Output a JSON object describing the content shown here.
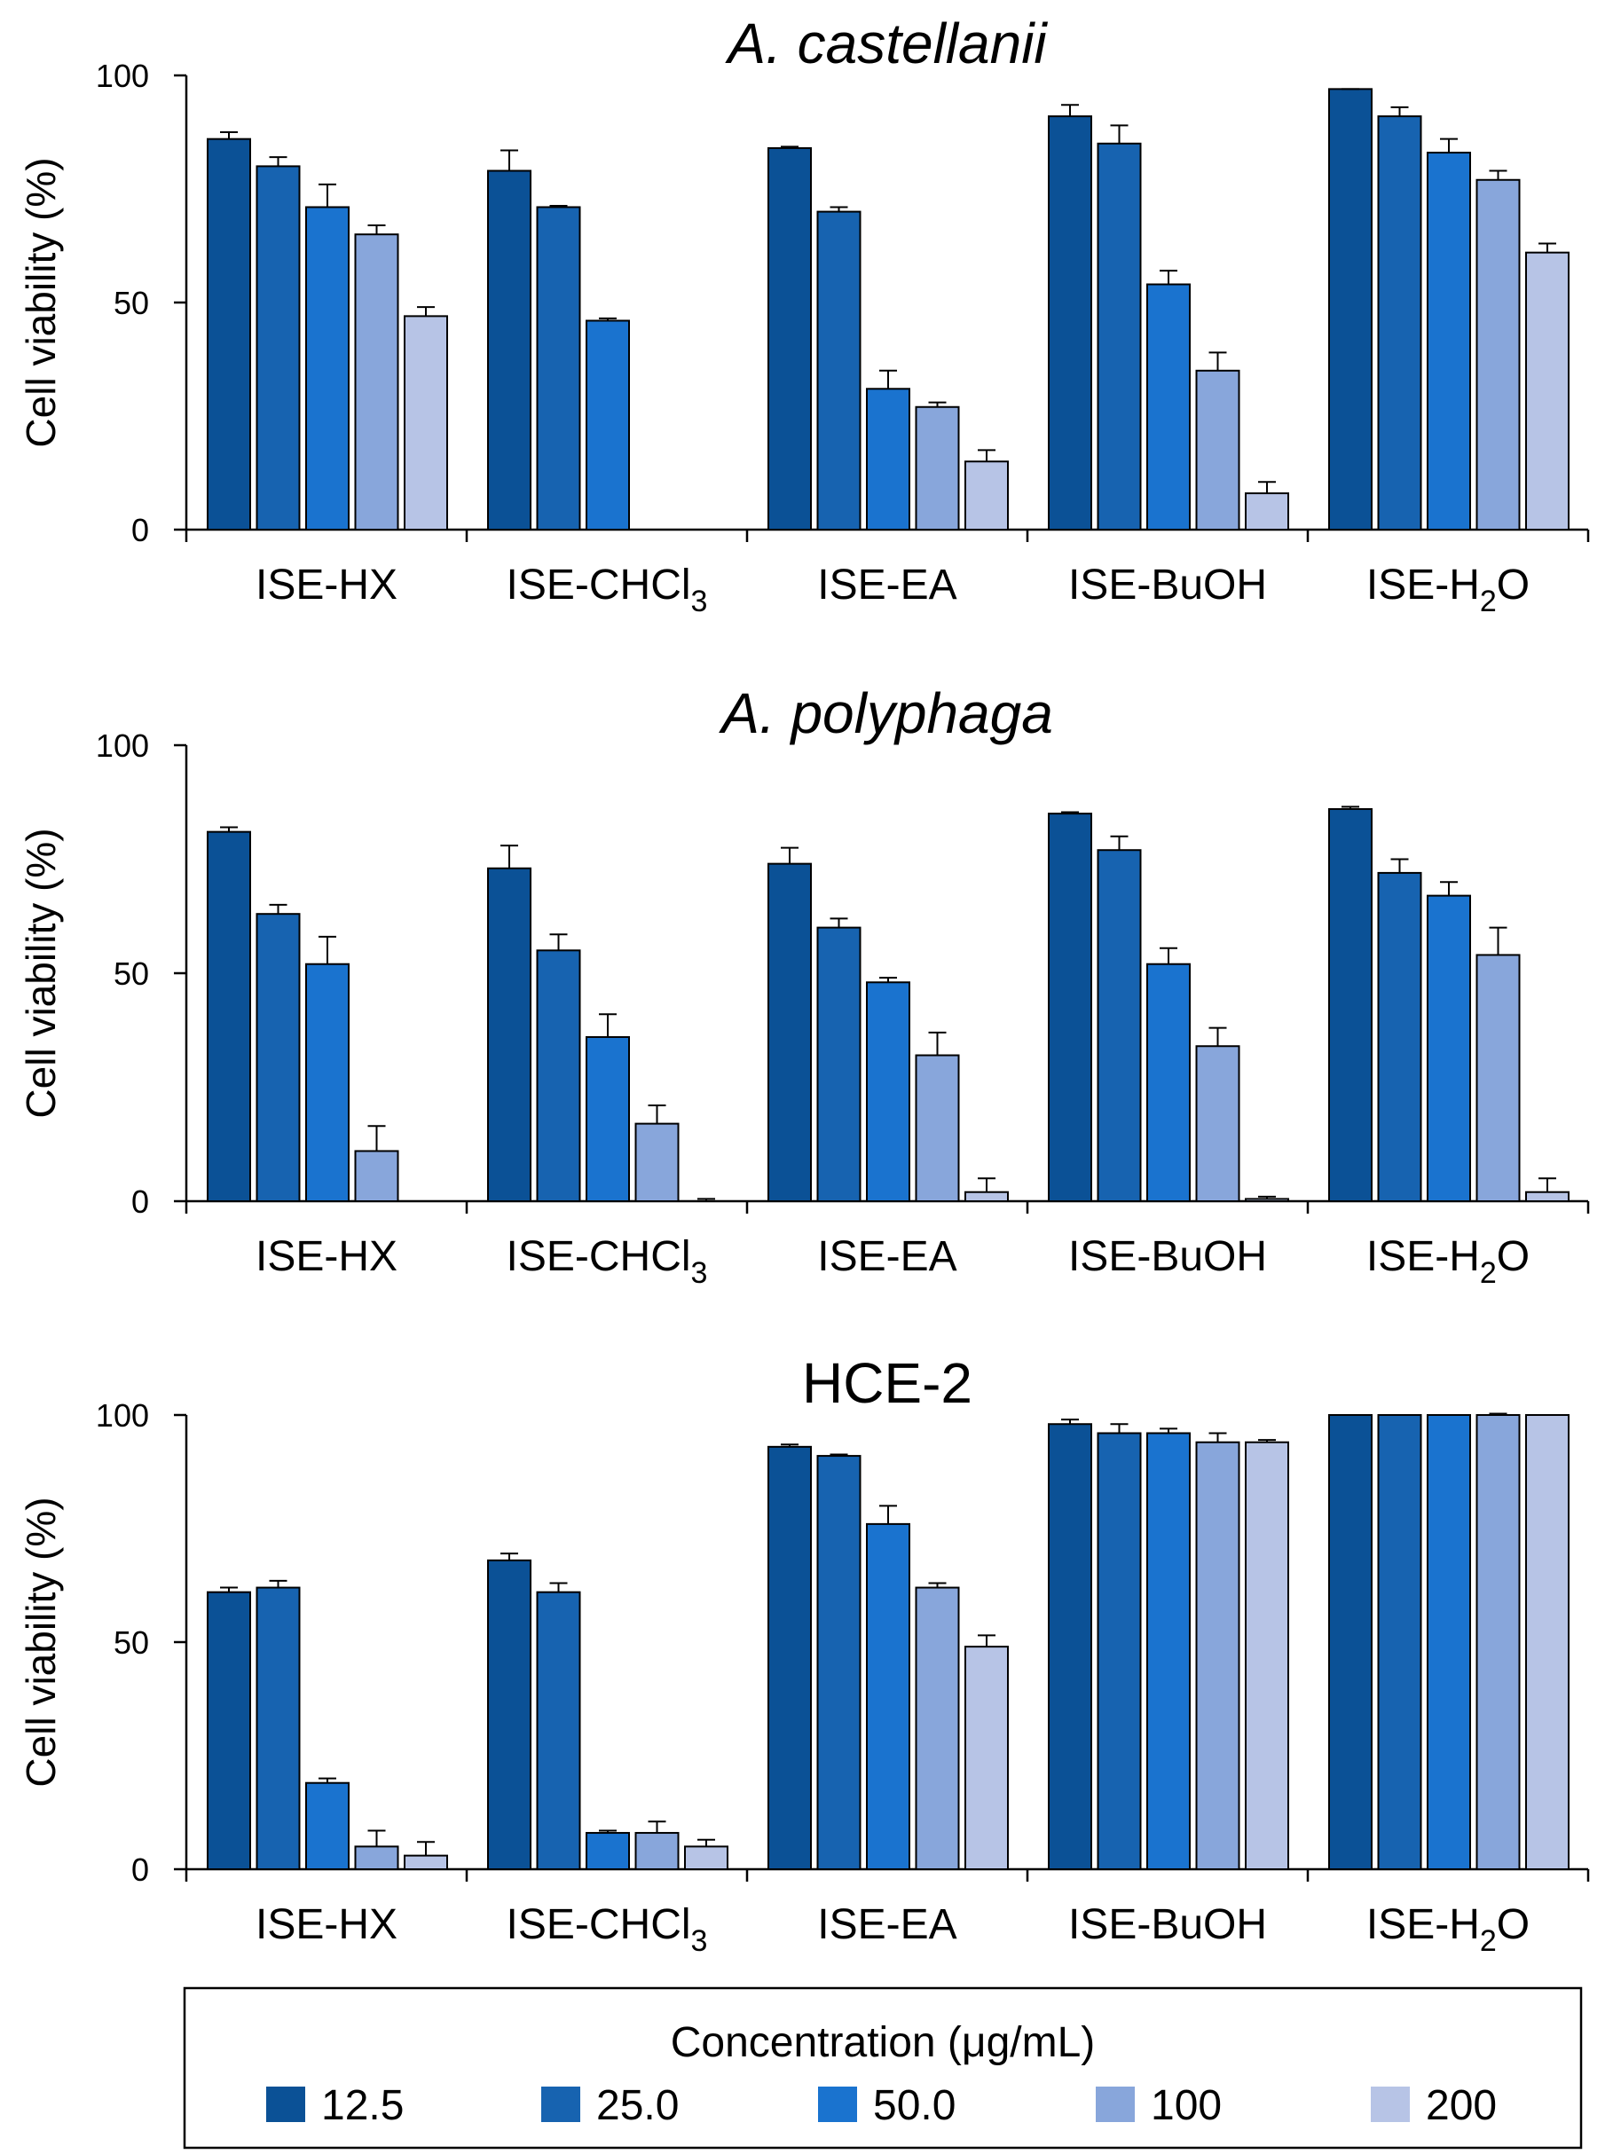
{
  "colors": [
    "#0b5196",
    "#1763b0",
    "#1a73cf",
    "#88a6db",
    "#b7c4e6"
  ],
  "legend": {
    "title": "Concentration (μg/mL)",
    "entries": [
      "12.5",
      "25.0",
      "50.0",
      "100",
      "200"
    ]
  },
  "chart_data": [
    {
      "type": "bar",
      "title": "A. castellanii",
      "title_italic": true,
      "ylabel": "Cell viability (%)",
      "ylim": [
        0,
        100
      ],
      "yticks": [
        "0",
        "50",
        "100"
      ],
      "categories": [
        {
          "base": "ISE-HX",
          "sub": ""
        },
        {
          "base": "ISE-CHCl",
          "sub": "3"
        },
        {
          "base": "ISE-EA",
          "sub": ""
        },
        {
          "base": "ISE-BuOH",
          "sub": ""
        },
        {
          "base": "ISE-H",
          "sub": "2",
          "suffix": "O"
        }
      ],
      "series": [
        {
          "name": "12.5",
          "values": [
            86,
            79,
            84,
            91,
            97
          ],
          "errors": [
            1.5,
            4.5,
            0.3,
            2.5,
            0
          ]
        },
        {
          "name": "25.0",
          "values": [
            80,
            71,
            70,
            85,
            91
          ],
          "errors": [
            2,
            0.3,
            1,
            4,
            2
          ]
        },
        {
          "name": "50.0",
          "values": [
            71,
            46,
            31,
            54,
            83
          ],
          "errors": [
            5,
            0.5,
            4,
            3,
            3
          ]
        },
        {
          "name": "100",
          "values": [
            65,
            0,
            27,
            35,
            77
          ],
          "errors": [
            2,
            0,
            1,
            4,
            2
          ]
        },
        {
          "name": "200",
          "values": [
            47,
            0,
            15,
            8,
            61
          ],
          "errors": [
            2,
            0,
            2.5,
            2.5,
            2
          ]
        }
      ]
    },
    {
      "type": "bar",
      "title": "A. polyphaga",
      "title_italic": true,
      "ylabel": "Cell viability (%)",
      "ylim": [
        0,
        100
      ],
      "yticks": [
        "0",
        "50",
        "100"
      ],
      "categories": [
        {
          "base": "ISE-HX",
          "sub": ""
        },
        {
          "base": "ISE-CHCl",
          "sub": "3"
        },
        {
          "base": "ISE-EA",
          "sub": ""
        },
        {
          "base": "ISE-BuOH",
          "sub": ""
        },
        {
          "base": "ISE-H",
          "sub": "2",
          "suffix": "O"
        }
      ],
      "series": [
        {
          "name": "12.5",
          "values": [
            81,
            73,
            74,
            85,
            86
          ],
          "errors": [
            1,
            5,
            3.5,
            0.3,
            0.5
          ]
        },
        {
          "name": "25.0",
          "values": [
            63,
            55,
            60,
            77,
            72
          ],
          "errors": [
            2,
            3.5,
            2,
            3,
            3
          ]
        },
        {
          "name": "50.0",
          "values": [
            52,
            36,
            48,
            52,
            67
          ],
          "errors": [
            6,
            5,
            1,
            3.5,
            3
          ]
        },
        {
          "name": "100",
          "values": [
            11,
            17,
            32,
            34,
            54
          ],
          "errors": [
            5.5,
            4,
            5,
            4,
            6
          ]
        },
        {
          "name": "200",
          "values": [
            0,
            0,
            2,
            0.5,
            2
          ],
          "errors": [
            0,
            0.5,
            3,
            0.5,
            3
          ]
        }
      ]
    },
    {
      "type": "bar",
      "title": "HCE-2",
      "title_italic": false,
      "ylabel": "Cell viability (%)",
      "ylim": [
        0,
        100
      ],
      "yticks": [
        "0",
        "50",
        "100"
      ],
      "categories": [
        {
          "base": "ISE-HX",
          "sub": ""
        },
        {
          "base": "ISE-CHCl",
          "sub": "3"
        },
        {
          "base": "ISE-EA",
          "sub": ""
        },
        {
          "base": "ISE-BuOH",
          "sub": ""
        },
        {
          "base": "ISE-H",
          "sub": "2",
          "suffix": "O"
        }
      ],
      "series": [
        {
          "name": "12.5",
          "values": [
            61,
            68,
            93,
            98,
            100
          ],
          "errors": [
            1,
            1.5,
            0.5,
            1,
            0
          ]
        },
        {
          "name": "25.0",
          "values": [
            62,
            61,
            91,
            96,
            100
          ],
          "errors": [
            1.5,
            2,
            0.3,
            2,
            0
          ]
        },
        {
          "name": "50.0",
          "values": [
            19,
            8,
            76,
            96,
            100
          ],
          "errors": [
            1,
            0.5,
            4,
            1,
            0
          ]
        },
        {
          "name": "100",
          "values": [
            5,
            8,
            62,
            94,
            100
          ],
          "errors": [
            3.5,
            2.5,
            1,
            2,
            0.3
          ]
        },
        {
          "name": "200",
          "values": [
            3,
            5,
            49,
            94,
            100
          ],
          "errors": [
            3,
            1.5,
            2.5,
            0.5,
            0
          ]
        }
      ]
    }
  ]
}
